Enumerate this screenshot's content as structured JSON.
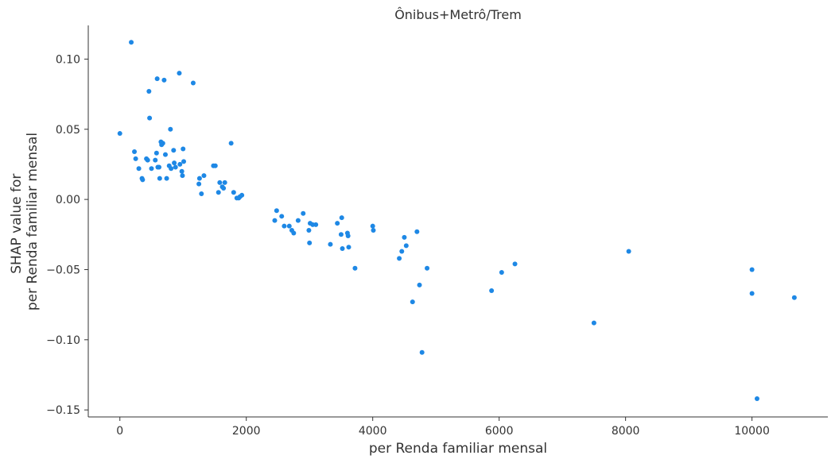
{
  "chart_data": {
    "type": "scatter",
    "title": "Ônibus+Metrô/Trem",
    "xlabel": "per Renda familiar mensal",
    "ylabel_lines": [
      "SHAP value for",
      "per Renda familiar mensal"
    ],
    "xlim": [
      -500,
      11200
    ],
    "ylim": [
      -0.155,
      0.124
    ],
    "xticks": [
      0,
      2000,
      4000,
      6000,
      8000,
      10000
    ],
    "xtick_labels": [
      "0",
      "2000",
      "4000",
      "6000",
      "8000",
      "10000"
    ],
    "yticks": [
      0.1,
      0.05,
      0.0,
      -0.05,
      -0.1,
      -0.15
    ],
    "ytick_labels": [
      "0.10",
      "0.05",
      "0.00",
      "−0.05",
      "−0.10",
      "−0.15"
    ],
    "grid": false,
    "point_color": "#1E88E5",
    "points": [
      [
        0,
        0.047
      ],
      [
        180,
        0.112
      ],
      [
        230,
        0.034
      ],
      [
        250,
        0.029
      ],
      [
        300,
        0.022
      ],
      [
        350,
        0.015
      ],
      [
        360,
        0.014
      ],
      [
        420,
        0.029
      ],
      [
        440,
        0.028
      ],
      [
        460,
        0.077
      ],
      [
        470,
        0.058
      ],
      [
        500,
        0.022
      ],
      [
        560,
        0.028
      ],
      [
        580,
        0.033
      ],
      [
        590,
        0.086
      ],
      [
        600,
        0.023
      ],
      [
        620,
        0.023
      ],
      [
        630,
        0.015
      ],
      [
        650,
        0.041
      ],
      [
        660,
        0.039
      ],
      [
        680,
        0.04
      ],
      [
        700,
        0.085
      ],
      [
        720,
        0.032
      ],
      [
        740,
        0.015
      ],
      [
        780,
        0.024
      ],
      [
        800,
        0.05
      ],
      [
        810,
        0.022
      ],
      [
        850,
        0.035
      ],
      [
        860,
        0.026
      ],
      [
        880,
        0.023
      ],
      [
        940,
        0.09
      ],
      [
        950,
        0.025
      ],
      [
        980,
        0.02
      ],
      [
        990,
        0.017
      ],
      [
        1000,
        0.036
      ],
      [
        1010,
        0.027
      ],
      [
        1160,
        0.083
      ],
      [
        1250,
        0.011
      ],
      [
        1260,
        0.015
      ],
      [
        1290,
        0.004
      ],
      [
        1330,
        0.017
      ],
      [
        1480,
        0.024
      ],
      [
        1510,
        0.024
      ],
      [
        1560,
        0.005
      ],
      [
        1580,
        0.012
      ],
      [
        1620,
        0.009
      ],
      [
        1640,
        0.008
      ],
      [
        1660,
        0.012
      ],
      [
        1760,
        0.04
      ],
      [
        1800,
        0.005
      ],
      [
        1850,
        0.001
      ],
      [
        1880,
        0.001
      ],
      [
        1900,
        0.002
      ],
      [
        1930,
        0.003
      ],
      [
        2450,
        -0.015
      ],
      [
        2480,
        -0.008
      ],
      [
        2560,
        -0.012
      ],
      [
        2600,
        -0.019
      ],
      [
        2680,
        -0.019
      ],
      [
        2720,
        -0.022
      ],
      [
        2750,
        -0.024
      ],
      [
        2820,
        -0.015
      ],
      [
        2900,
        -0.01
      ],
      [
        2990,
        -0.022
      ],
      [
        3000,
        -0.031
      ],
      [
        3010,
        -0.017
      ],
      [
        3050,
        -0.018
      ],
      [
        3100,
        -0.018
      ],
      [
        3330,
        -0.032
      ],
      [
        3440,
        -0.017
      ],
      [
        3500,
        -0.025
      ],
      [
        3510,
        -0.013
      ],
      [
        3520,
        -0.035
      ],
      [
        3600,
        -0.024
      ],
      [
        3610,
        -0.026
      ],
      [
        3620,
        -0.034
      ],
      [
        3720,
        -0.049
      ],
      [
        4000,
        -0.019
      ],
      [
        4010,
        -0.022
      ],
      [
        4420,
        -0.042
      ],
      [
        4460,
        -0.037
      ],
      [
        4500,
        -0.027
      ],
      [
        4530,
        -0.033
      ],
      [
        4630,
        -0.073
      ],
      [
        4700,
        -0.023
      ],
      [
        4740,
        -0.061
      ],
      [
        4780,
        -0.109
      ],
      [
        4860,
        -0.049
      ],
      [
        5880,
        -0.065
      ],
      [
        6040,
        -0.052
      ],
      [
        6250,
        -0.046
      ],
      [
        7500,
        -0.088
      ],
      [
        8050,
        -0.037
      ],
      [
        10000,
        -0.05
      ],
      [
        10000,
        -0.067
      ],
      [
        10080,
        -0.142
      ],
      [
        10670,
        -0.07
      ]
    ]
  }
}
